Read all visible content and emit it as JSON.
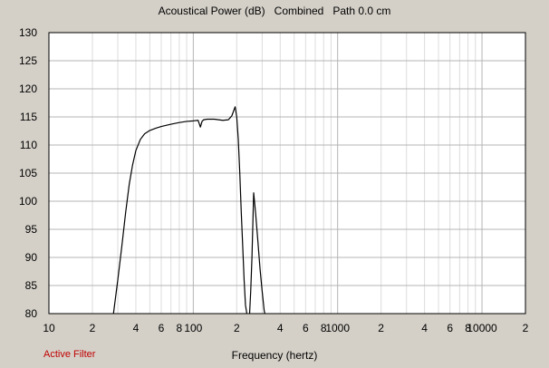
{
  "chart_data": {
    "type": "line",
    "title": "Acoustical Power (dB)   Combined   Path 0.0 cm",
    "xlabel": "Frequency (hertz)",
    "ylabel": "",
    "xscale": "log",
    "xlim": [
      10,
      20000
    ],
    "ylim": [
      80,
      130
    ],
    "y_ticks": [
      80,
      85,
      90,
      95,
      100,
      105,
      110,
      115,
      120,
      125,
      130
    ],
    "x_ticks": [
      {
        "value": 10,
        "label": "10"
      },
      {
        "value": 20,
        "label": "2"
      },
      {
        "value": 40,
        "label": "4"
      },
      {
        "value": 60,
        "label": "6"
      },
      {
        "value": 80,
        "label": "8"
      },
      {
        "value": 100,
        "label": "100"
      },
      {
        "value": 200,
        "label": "2"
      },
      {
        "value": 400,
        "label": "4"
      },
      {
        "value": 600,
        "label": "6"
      },
      {
        "value": 800,
        "label": "8"
      },
      {
        "value": 1000,
        "label": "1000"
      },
      {
        "value": 2000,
        "label": "2"
      },
      {
        "value": 4000,
        "label": "4"
      },
      {
        "value": 6000,
        "label": "6"
      },
      {
        "value": 8000,
        "label": "8"
      },
      {
        "value": 10000,
        "label": "10000"
      },
      {
        "value": 20000,
        "label": "2"
      }
    ],
    "grid": true,
    "series": [
      {
        "color": "#000000",
        "x": [
          28,
          30,
          32,
          34,
          36,
          38,
          40,
          43,
          46,
          50,
          55,
          60,
          70,
          80,
          90,
          100,
          108,
          112,
          115,
          118,
          125,
          140,
          160,
          175,
          185,
          195,
          200,
          205,
          210,
          215,
          220,
          225,
          230,
          235,
          240,
          245,
          250,
          255,
          262,
          270,
          280,
          290,
          300,
          310,
          320,
          330,
          340,
          345
        ],
        "y": [
          80,
          86,
          92,
          98,
          103,
          106.5,
          109,
          111,
          112,
          112.6,
          113,
          113.3,
          113.7,
          114,
          114.2,
          114.3,
          114.4,
          113.2,
          114.2,
          114.5,
          114.6,
          114.6,
          114.4,
          114.5,
          115.2,
          116.8,
          115,
          111,
          105,
          98,
          92,
          86,
          81.5,
          80,
          79,
          79.5,
          84,
          90,
          101.5,
          98,
          93,
          88,
          84,
          80.5,
          79,
          78,
          78,
          78
        ]
      }
    ]
  },
  "footer": {
    "filter_label": "Active Filter"
  }
}
